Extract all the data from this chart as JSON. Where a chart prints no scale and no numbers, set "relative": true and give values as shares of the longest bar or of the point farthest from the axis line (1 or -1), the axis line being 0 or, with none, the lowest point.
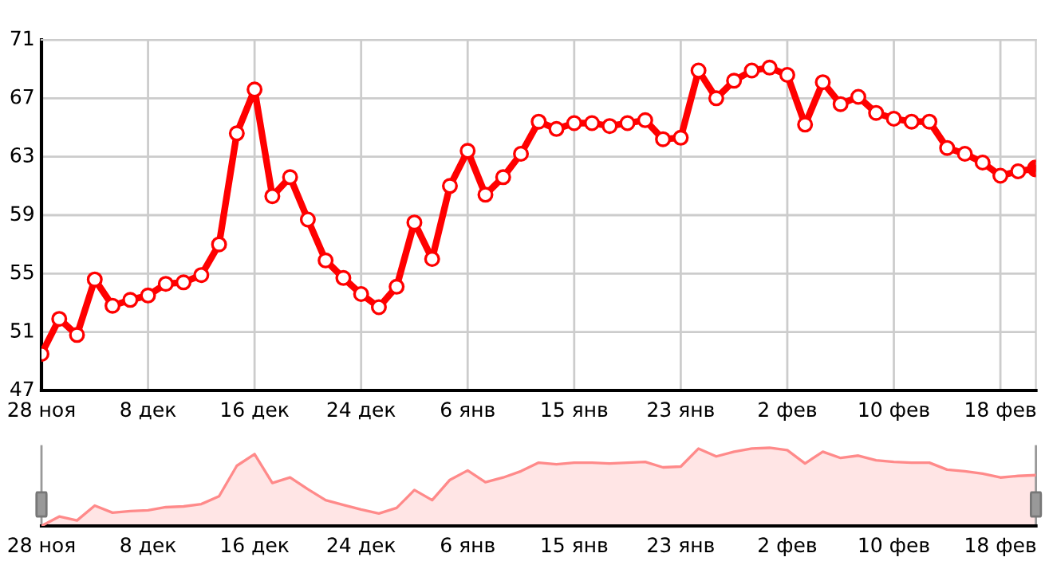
{
  "chart_data": [
    {
      "type": "line",
      "categories": [
        "28 ноя",
        null,
        null,
        null,
        null,
        null,
        "8 дек",
        null,
        null,
        null,
        null,
        null,
        "16 дек",
        null,
        null,
        null,
        null,
        null,
        "24 дек",
        null,
        null,
        null,
        null,
        null,
        "6 янв",
        null,
        null,
        null,
        null,
        null,
        "15 янв",
        null,
        null,
        null,
        null,
        null,
        "23 янв",
        null,
        null,
        null,
        null,
        null,
        "2 фев",
        null,
        null,
        null,
        null,
        null,
        "10 фев",
        null,
        null,
        null,
        null,
        null,
        "18 фев",
        null,
        null
      ],
      "series": [
        {
          "color": "#ff0000",
          "values": [
            49.5,
            51.9,
            50.8,
            54.6,
            52.8,
            53.2,
            53.5,
            54.3,
            54.4,
            54.9,
            57.0,
            64.6,
            67.6,
            60.3,
            61.6,
            58.7,
            55.9,
            54.7,
            53.6,
            52.7,
            54.1,
            58.5,
            56.0,
            61.0,
            63.4,
            60.4,
            61.6,
            63.2,
            65.4,
            64.9,
            65.3,
            65.3,
            65.1,
            65.3,
            65.5,
            64.2,
            64.3,
            68.9,
            67.0,
            68.2,
            68.9,
            69.1,
            68.6,
            65.2,
            68.1,
            66.6,
            67.1,
            66.0,
            65.6,
            65.4,
            65.4,
            63.6,
            63.2,
            62.6,
            61.7,
            62.0,
            62.2
          ]
        }
      ],
      "ylim": [
        47,
        71
      ],
      "yticks": [
        47,
        51,
        55,
        59,
        63,
        67,
        71
      ],
      "grid": true,
      "marker": "circle",
      "line_style": "solid"
    },
    {
      "type": "area",
      "relative": true,
      "categories": [
        "28 ноя",
        null,
        null,
        null,
        null,
        null,
        "8 дек",
        null,
        null,
        null,
        null,
        null,
        "16 дек",
        null,
        null,
        null,
        null,
        null,
        "24 дек",
        null,
        null,
        null,
        null,
        null,
        "6 янв",
        null,
        null,
        null,
        null,
        null,
        "15 янв",
        null,
        null,
        null,
        null,
        null,
        "23 янв",
        null,
        null,
        null,
        null,
        null,
        "2 фев",
        null,
        null,
        null,
        null,
        null,
        "10 фев",
        null,
        null,
        null,
        null,
        null,
        "18 фев",
        null,
        null
      ],
      "series": [
        {
          "color": "#ff8a8a",
          "values": [
            0,
            0.12,
            0.07,
            0.26,
            0.17,
            0.19,
            0.2,
            0.24,
            0.25,
            0.28,
            0.38,
            0.77,
            0.92,
            0.55,
            0.62,
            0.47,
            0.33,
            0.27,
            0.21,
            0.16,
            0.23,
            0.46,
            0.33,
            0.59,
            0.71,
            0.56,
            0.62,
            0.7,
            0.81,
            0.79,
            0.81,
            0.81,
            0.8,
            0.81,
            0.82,
            0.75,
            0.76,
            0.99,
            0.89,
            0.95,
            0.99,
            1.0,
            0.97,
            0.8,
            0.95,
            0.87,
            0.9,
            0.84,
            0.82,
            0.81,
            0.81,
            0.72,
            0.7,
            0.67,
            0.62,
            0.64,
            0.65
          ]
        }
      ],
      "grid": false
    }
  ]
}
